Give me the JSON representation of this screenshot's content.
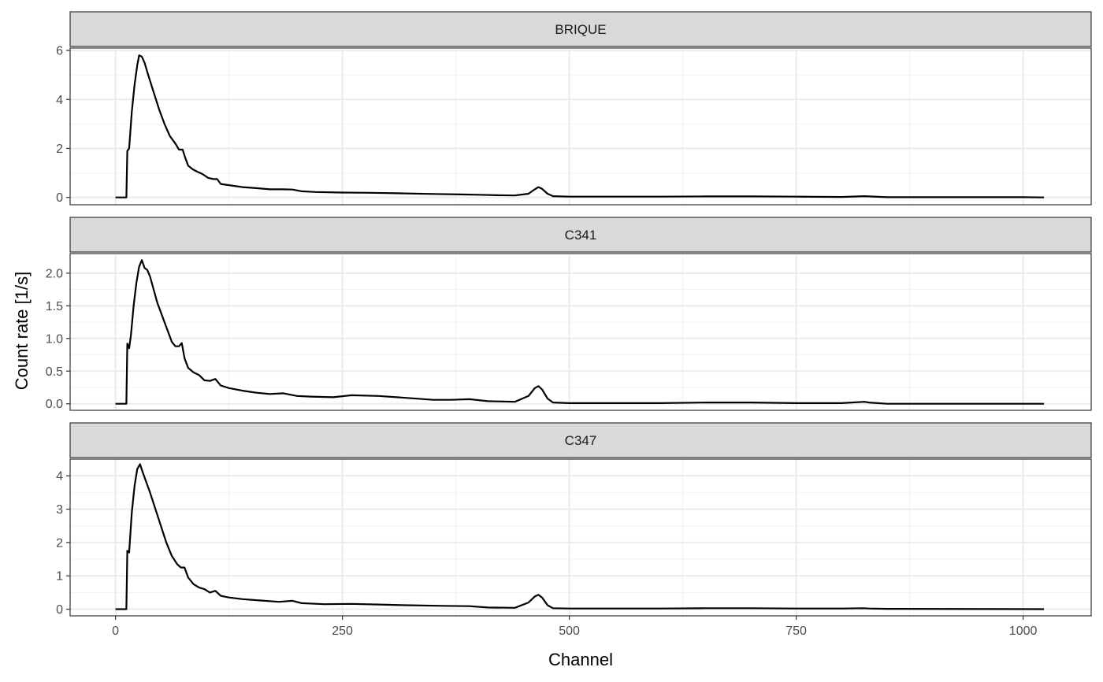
{
  "chart_data": {
    "type": "line",
    "xlabel": "Channel",
    "ylabel": "Count rate [1/s]",
    "xlim": [
      -50,
      1075
    ],
    "x_ticks": [
      0,
      250,
      500,
      750,
      1000
    ],
    "x_tick_labels": [
      "0",
      "250",
      "500",
      "750",
      "1000"
    ],
    "grid": true,
    "colors": {
      "line": "#000000",
      "strip_fill": "#d9d9d9",
      "panel_border": "#333333",
      "grid_major": "#ebebeb",
      "grid_minor": "#f3f3f3"
    },
    "panels": [
      {
        "name": "BRIQUE",
        "ylim": [
          -0.3,
          6.1
        ],
        "y_ticks": [
          0,
          2,
          4,
          6
        ],
        "y_tick_labels": [
          "0",
          "2",
          "4",
          "6"
        ],
        "points": [
          [
            0,
            0
          ],
          [
            12,
            0
          ],
          [
            13,
            1.9
          ],
          [
            15,
            2.0
          ],
          [
            18,
            3.5
          ],
          [
            21,
            4.6
          ],
          [
            24,
            5.4
          ],
          [
            26,
            5.8
          ],
          [
            29,
            5.75
          ],
          [
            32,
            5.5
          ],
          [
            36,
            5.0
          ],
          [
            42,
            4.3
          ],
          [
            48,
            3.6
          ],
          [
            54,
            3.0
          ],
          [
            60,
            2.5
          ],
          [
            66,
            2.2
          ],
          [
            70,
            1.95
          ],
          [
            74,
            1.95
          ],
          [
            77,
            1.6
          ],
          [
            80,
            1.3
          ],
          [
            85,
            1.15
          ],
          [
            90,
            1.05
          ],
          [
            96,
            0.95
          ],
          [
            102,
            0.8
          ],
          [
            108,
            0.75
          ],
          [
            112,
            0.75
          ],
          [
            116,
            0.55
          ],
          [
            125,
            0.5
          ],
          [
            140,
            0.42
          ],
          [
            155,
            0.38
          ],
          [
            170,
            0.33
          ],
          [
            185,
            0.33
          ],
          [
            195,
            0.32
          ],
          [
            205,
            0.25
          ],
          [
            220,
            0.22
          ],
          [
            250,
            0.2
          ],
          [
            280,
            0.19
          ],
          [
            310,
            0.17
          ],
          [
            350,
            0.14
          ],
          [
            380,
            0.12
          ],
          [
            400,
            0.11
          ],
          [
            420,
            0.09
          ],
          [
            440,
            0.08
          ],
          [
            455,
            0.15
          ],
          [
            462,
            0.33
          ],
          [
            466,
            0.42
          ],
          [
            470,
            0.35
          ],
          [
            476,
            0.15
          ],
          [
            482,
            0.05
          ],
          [
            500,
            0.03
          ],
          [
            550,
            0.03
          ],
          [
            600,
            0.03
          ],
          [
            650,
            0.04
          ],
          [
            700,
            0.04
          ],
          [
            750,
            0.03
          ],
          [
            800,
            0.02
          ],
          [
            825,
            0.05
          ],
          [
            830,
            0.04
          ],
          [
            850,
            0.01
          ],
          [
            900,
            0.01
          ],
          [
            1000,
            0.01
          ],
          [
            1023,
            0.0
          ]
        ]
      },
      {
        "name": "C341",
        "ylim": [
          -0.1,
          2.3
        ],
        "y_ticks": [
          0,
          0.5,
          1.0,
          1.5,
          2.0
        ],
        "y_tick_labels": [
          "0.0",
          "0.5",
          "1.0",
          "1.5",
          "2.0"
        ],
        "points": [
          [
            0,
            0
          ],
          [
            12,
            0
          ],
          [
            13,
            0.92
          ],
          [
            15,
            0.85
          ],
          [
            17,
            1.05
          ],
          [
            20,
            1.5
          ],
          [
            23,
            1.85
          ],
          [
            26,
            2.1
          ],
          [
            29,
            2.2
          ],
          [
            32,
            2.08
          ],
          [
            35,
            2.05
          ],
          [
            38,
            1.95
          ],
          [
            42,
            1.75
          ],
          [
            46,
            1.55
          ],
          [
            50,
            1.4
          ],
          [
            54,
            1.25
          ],
          [
            58,
            1.1
          ],
          [
            62,
            0.95
          ],
          [
            66,
            0.88
          ],
          [
            70,
            0.88
          ],
          [
            73,
            0.93
          ],
          [
            76,
            0.7
          ],
          [
            80,
            0.55
          ],
          [
            86,
            0.48
          ],
          [
            92,
            0.44
          ],
          [
            98,
            0.36
          ],
          [
            104,
            0.35
          ],
          [
            110,
            0.38
          ],
          [
            116,
            0.28
          ],
          [
            125,
            0.24
          ],
          [
            140,
            0.2
          ],
          [
            155,
            0.17
          ],
          [
            170,
            0.15
          ],
          [
            185,
            0.16
          ],
          [
            200,
            0.12
          ],
          [
            215,
            0.11
          ],
          [
            240,
            0.1
          ],
          [
            260,
            0.13
          ],
          [
            290,
            0.12
          ],
          [
            320,
            0.09
          ],
          [
            350,
            0.06
          ],
          [
            370,
            0.06
          ],
          [
            390,
            0.07
          ],
          [
            410,
            0.04
          ],
          [
            440,
            0.03
          ],
          [
            455,
            0.12
          ],
          [
            462,
            0.24
          ],
          [
            466,
            0.27
          ],
          [
            470,
            0.22
          ],
          [
            476,
            0.08
          ],
          [
            482,
            0.02
          ],
          [
            500,
            0.01
          ],
          [
            550,
            0.01
          ],
          [
            600,
            0.01
          ],
          [
            650,
            0.02
          ],
          [
            700,
            0.02
          ],
          [
            750,
            0.01
          ],
          [
            800,
            0.01
          ],
          [
            825,
            0.03
          ],
          [
            830,
            0.02
          ],
          [
            850,
            0.0
          ],
          [
            1023,
            0.0
          ]
        ]
      },
      {
        "name": "C347",
        "ylim": [
          -0.2,
          4.5
        ],
        "y_ticks": [
          0,
          1,
          2,
          3,
          4
        ],
        "y_tick_labels": [
          "0",
          "1",
          "2",
          "3",
          "4"
        ],
        "points": [
          [
            0,
            0
          ],
          [
            12,
            0
          ],
          [
            13,
            1.75
          ],
          [
            15,
            1.7
          ],
          [
            18,
            2.9
          ],
          [
            21,
            3.7
          ],
          [
            24,
            4.2
          ],
          [
            27,
            4.35
          ],
          [
            30,
            4.1
          ],
          [
            34,
            3.8
          ],
          [
            38,
            3.5
          ],
          [
            44,
            3.0
          ],
          [
            50,
            2.5
          ],
          [
            56,
            2.0
          ],
          [
            62,
            1.6
          ],
          [
            68,
            1.35
          ],
          [
            72,
            1.25
          ],
          [
            76,
            1.25
          ],
          [
            80,
            0.95
          ],
          [
            86,
            0.75
          ],
          [
            92,
            0.65
          ],
          [
            98,
            0.6
          ],
          [
            104,
            0.5
          ],
          [
            110,
            0.55
          ],
          [
            116,
            0.4
          ],
          [
            125,
            0.35
          ],
          [
            140,
            0.3
          ],
          [
            160,
            0.26
          ],
          [
            180,
            0.22
          ],
          [
            195,
            0.25
          ],
          [
            205,
            0.18
          ],
          [
            230,
            0.15
          ],
          [
            260,
            0.16
          ],
          [
            290,
            0.14
          ],
          [
            320,
            0.12
          ],
          [
            360,
            0.1
          ],
          [
            390,
            0.09
          ],
          [
            410,
            0.05
          ],
          [
            440,
            0.04
          ],
          [
            455,
            0.2
          ],
          [
            462,
            0.38
          ],
          [
            466,
            0.43
          ],
          [
            470,
            0.35
          ],
          [
            476,
            0.12
          ],
          [
            482,
            0.03
          ],
          [
            500,
            0.02
          ],
          [
            550,
            0.02
          ],
          [
            600,
            0.02
          ],
          [
            650,
            0.03
          ],
          [
            700,
            0.03
          ],
          [
            750,
            0.02
          ],
          [
            800,
            0.02
          ],
          [
            825,
            0.03
          ],
          [
            830,
            0.02
          ],
          [
            850,
            0.01
          ],
          [
            1023,
            0.0
          ]
        ]
      }
    ]
  }
}
